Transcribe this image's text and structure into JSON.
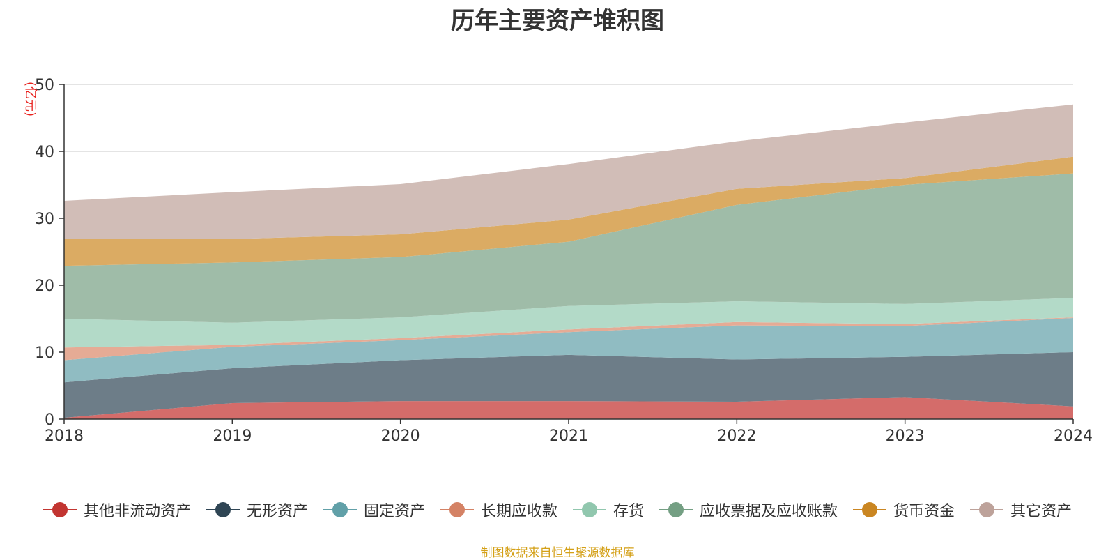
{
  "chart_data": {
    "type": "area",
    "stacked": true,
    "title": "历年主要资产堆积图",
    "ylabel": "(亿元)",
    "ylim": [
      0,
      50
    ],
    "yticks": [
      0,
      10,
      20,
      30,
      40,
      50
    ],
    "categories": [
      "2018",
      "2019",
      "2020",
      "2021",
      "2022",
      "2023",
      "2024"
    ],
    "grid": true,
    "legend_position": "bottom",
    "series": [
      {
        "name": "其他非流动资产",
        "color": "#c23531",
        "fill": "#d46c6a",
        "values": [
          0.2,
          2.4,
          2.7,
          2.7,
          2.6,
          3.3,
          1.9
        ]
      },
      {
        "name": "无形资产",
        "color": "#2f4554",
        "fill": "#6d7d88",
        "values": [
          5.3,
          5.2,
          6.1,
          6.9,
          6.3,
          6.0,
          8.1
        ]
      },
      {
        "name": "固定资产",
        "color": "#61a0a8",
        "fill": "#90bcc2",
        "values": [
          3.3,
          3.2,
          3.0,
          3.4,
          5.1,
          4.6,
          5.1
        ]
      },
      {
        "name": "长期应收款",
        "color": "#d48265",
        "fill": "#e5ab95",
        "values": [
          1.9,
          0.3,
          0.3,
          0.4,
          0.5,
          0.3,
          0.1
        ]
      },
      {
        "name": "存货",
        "color": "#91c7ae",
        "fill": "#b3dac8",
        "values": [
          4.3,
          3.3,
          3.1,
          3.5,
          3.1,
          3.0,
          2.9
        ]
      },
      {
        "name": "应收票据及应收账款",
        "color": "#749f83",
        "fill": "#9fbca8",
        "values": [
          7.9,
          9.0,
          9.0,
          9.6,
          14.4,
          17.8,
          18.6
        ]
      },
      {
        "name": "货币资金",
        "color": "#ca8622",
        "fill": "#dbab63",
        "values": [
          4.0,
          3.5,
          3.4,
          3.3,
          2.4,
          1.0,
          2.5
        ]
      },
      {
        "name": "其它资产",
        "color": "#bda29a",
        "fill": "#d1bdb7",
        "values": [
          5.7,
          7.0,
          7.5,
          8.3,
          7.1,
          8.3,
          7.8
        ]
      }
    ]
  },
  "footer": {
    "source": "制图数据来自恒生聚源数据库"
  }
}
